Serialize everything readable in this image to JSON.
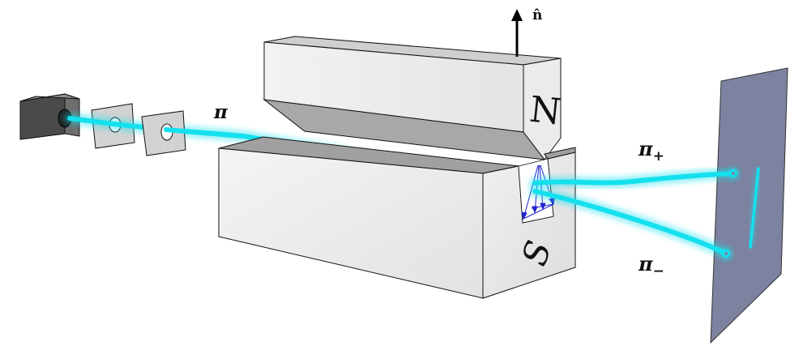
{
  "labels": {
    "normal": "n̂",
    "north": "N",
    "south": "S",
    "beam": "π",
    "beam_plus_symbol": "π",
    "beam_plus_sub": "+",
    "beam_minus_symbol": "π",
    "beam_minus_sub": "−"
  },
  "colors": {
    "beam": "#14e0ee",
    "magnet_light": "#eeeeee",
    "magnet_shade": "#a0a0a0",
    "screen": "#7d82a0",
    "source": "#555555",
    "field_lines": "#2020d0"
  }
}
